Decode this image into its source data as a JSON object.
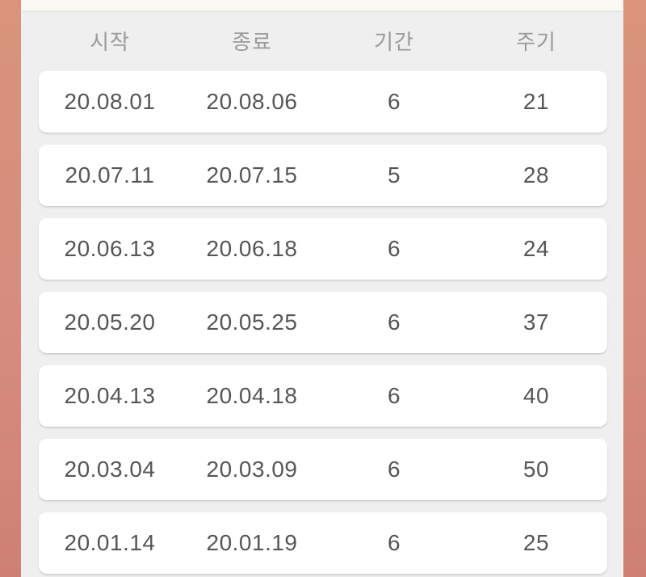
{
  "theme": {
    "frame_color_top": "#D9947B",
    "frame_color_bottom": "#CE8173",
    "top_strip_color": "#FBF9F4",
    "background_color": "#F0EFEF",
    "card_color": "#FFFFFF",
    "header_text_color": "#9A9A9A",
    "cell_text_color": "#565656"
  },
  "table": {
    "columns": [
      {
        "key": "start",
        "label": "시작"
      },
      {
        "key": "end",
        "label": "종료"
      },
      {
        "key": "duration",
        "label": "기간"
      },
      {
        "key": "cycle",
        "label": "주기"
      }
    ],
    "rows": [
      {
        "start": "20.08.01",
        "end": "20.08.06",
        "duration": "6",
        "cycle": "21"
      },
      {
        "start": "20.07.11",
        "end": "20.07.15",
        "duration": "5",
        "cycle": "28"
      },
      {
        "start": "20.06.13",
        "end": "20.06.18",
        "duration": "6",
        "cycle": "24"
      },
      {
        "start": "20.05.20",
        "end": "20.05.25",
        "duration": "6",
        "cycle": "37"
      },
      {
        "start": "20.04.13",
        "end": "20.04.18",
        "duration": "6",
        "cycle": "40"
      },
      {
        "start": "20.03.04",
        "end": "20.03.09",
        "duration": "6",
        "cycle": "50"
      },
      {
        "start": "20.01.14",
        "end": "20.01.19",
        "duration": "6",
        "cycle": "25"
      }
    ]
  }
}
